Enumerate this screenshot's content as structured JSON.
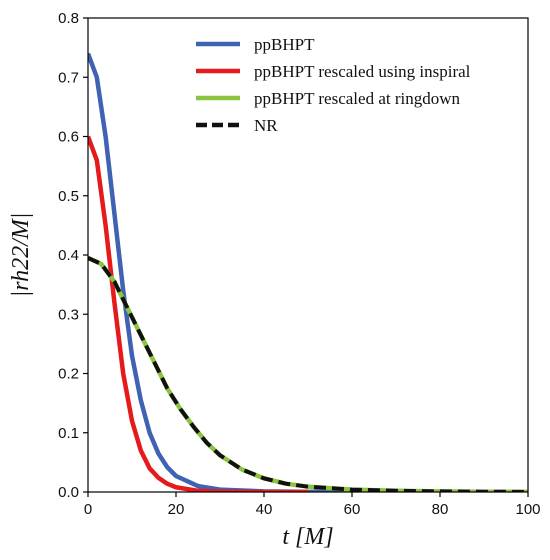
{
  "chart_data": {
    "type": "line",
    "title": "",
    "xlabel": "t [M]",
    "ylabel": "|rh22/M|",
    "xlim": [
      0,
      100
    ],
    "ylim": [
      0,
      0.8
    ],
    "xticks": [
      0,
      20,
      40,
      60,
      80,
      100
    ],
    "yticks": [
      0.0,
      0.1,
      0.2,
      0.3,
      0.4,
      0.5,
      0.6,
      0.7,
      0.8
    ],
    "grid": false,
    "legend_position": "top-center",
    "series": [
      {
        "name": "ppBHPT",
        "color": "#4062b3",
        "style": "solid",
        "x": [
          0,
          2,
          4,
          6,
          8,
          10,
          12,
          14,
          16,
          18,
          20,
          25,
          30,
          40,
          50,
          60
        ],
        "y": [
          0.74,
          0.7,
          0.6,
          0.47,
          0.34,
          0.23,
          0.155,
          0.1,
          0.065,
          0.042,
          0.027,
          0.01,
          0.004,
          0.001,
          0.0003,
          0.0
        ]
      },
      {
        "name": "ppBHPT rescaled using inspiral",
        "color": "#e41a1c",
        "style": "solid",
        "x": [
          0,
          2,
          4,
          6,
          8,
          10,
          12,
          14,
          16,
          18,
          20,
          25,
          30,
          40,
          50
        ],
        "y": [
          0.6,
          0.56,
          0.45,
          0.32,
          0.2,
          0.12,
          0.07,
          0.04,
          0.024,
          0.014,
          0.008,
          0.002,
          0.0007,
          0.0001,
          0.0
        ]
      },
      {
        "name": "ppBHPT rescaled at ringdown",
        "color": "#8bc53f",
        "style": "solid",
        "x": [
          0,
          3,
          6,
          9,
          12,
          15,
          18,
          21,
          24,
          27,
          30,
          35,
          40,
          45,
          50,
          60,
          70,
          80,
          90,
          100
        ],
        "y": [
          0.395,
          0.385,
          0.355,
          0.31,
          0.265,
          0.22,
          0.175,
          0.14,
          0.11,
          0.083,
          0.062,
          0.038,
          0.023,
          0.014,
          0.009,
          0.004,
          0.002,
          0.001,
          0.0005,
          0.0002
        ]
      },
      {
        "name": "NR",
        "color": "#111111",
        "style": "dashed",
        "x": [
          0,
          3,
          6,
          9,
          12,
          15,
          18,
          21,
          24,
          27,
          30,
          35,
          40,
          45,
          50,
          60,
          70,
          80,
          90,
          100
        ],
        "y": [
          0.395,
          0.385,
          0.355,
          0.31,
          0.265,
          0.22,
          0.175,
          0.14,
          0.11,
          0.083,
          0.062,
          0.038,
          0.023,
          0.014,
          0.009,
          0.004,
          0.002,
          0.001,
          0.0005,
          0.0002
        ]
      }
    ]
  }
}
